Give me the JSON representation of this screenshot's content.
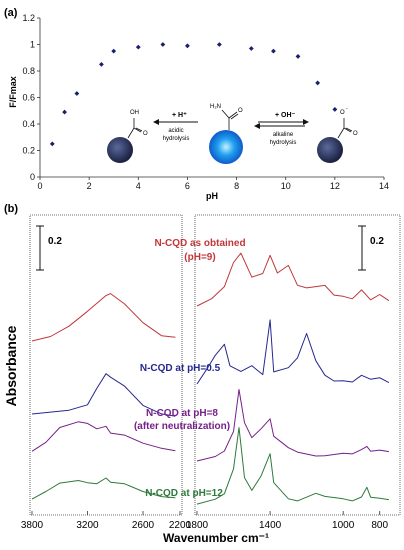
{
  "chart_data": [
    {
      "panel_label": "(a)",
      "type": "scatter",
      "xlabel": "pH",
      "ylabel": "F/Fmax",
      "xlim": [
        0,
        14
      ],
      "ylim": [
        0,
        1.2
      ],
      "xticks": [
        "0",
        "2",
        "4",
        "6",
        "8",
        "10",
        "12",
        "14"
      ],
      "yticks": [
        "0",
        "0.2",
        "0.4",
        "0.6",
        "0.8",
        "1",
        "1.2"
      ],
      "marker_color": "#1a1f6e",
      "points": [
        {
          "x": 0.5,
          "y": 0.25
        },
        {
          "x": 1.0,
          "y": 0.49
        },
        {
          "x": 1.5,
          "y": 0.63
        },
        {
          "x": 2.5,
          "y": 0.85
        },
        {
          "x": 3.0,
          "y": 0.95
        },
        {
          "x": 4.0,
          "y": 0.98
        },
        {
          "x": 5.0,
          "y": 1.0
        },
        {
          "x": 6.0,
          "y": 0.99
        },
        {
          "x": 7.3,
          "y": 1.0
        },
        {
          "x": 8.6,
          "y": 0.97
        },
        {
          "x": 9.5,
          "y": 0.95
        },
        {
          "x": 10.5,
          "y": 0.91
        },
        {
          "x": 11.3,
          "y": 0.71
        },
        {
          "x": 12.0,
          "y": 0.51
        }
      ],
      "annotations": {
        "acid": {
          "arrow_label": "+ H⁺",
          "process": "acidic",
          "process2": "hydrolysis"
        },
        "alkali": {
          "arrow_label": "+ OH⁻",
          "process": "alkaline",
          "process2": "hydrolysis"
        },
        "mid_molecule_label": "H₂N"
      },
      "ball_colors": {
        "left": "#2a3560",
        "center": "#1e8fe6",
        "right": "#2a3560"
      }
    },
    {
      "panel_label": "(b)",
      "type": "line",
      "xlabel": "Wavenumber cm⁻¹",
      "ylabel": "Absorbance",
      "xlim_left": [
        3800,
        2200
      ],
      "xlim_right": [
        1800,
        700
      ],
      "xticks_left": [
        "3800",
        "3200",
        "2600",
        "2200"
      ],
      "xticks_right": [
        "1800",
        "1400",
        "1000",
        "800"
      ],
      "scale_bar": "0.2",
      "series": [
        {
          "name": "N-CQD as obtained",
          "name2": "(pH=9)",
          "color": "#c0373a",
          "left": {
            "x": [
              3800,
              3600,
              3400,
              3200,
              3000,
              2950,
              2800,
              2600,
              2400,
              2250
            ],
            "y": [
              0.0,
              0.05,
              0.15,
              0.3,
              0.47,
              0.5,
              0.4,
              0.2,
              0.05,
              0.02
            ]
          },
          "right": {
            "x": [
              1800,
              1720,
              1650,
              1600,
              1560,
              1500,
              1440,
              1400,
              1360,
              1300,
              1250,
              1200,
              1100,
              1050,
              1000,
              950,
              900,
              850,
              800,
              750
            ],
            "y": [
              0.0,
              0.08,
              0.2,
              0.45,
              0.55,
              0.3,
              0.35,
              0.55,
              0.35,
              0.42,
              0.2,
              0.18,
              0.22,
              0.12,
              0.1,
              0.06,
              0.15,
              0.05,
              0.12,
              0.06
            ]
          }
        },
        {
          "name": "N-CQD at pH=0.5",
          "color": "#24288f",
          "left": {
            "x": [
              3800,
              3600,
              3400,
              3200,
              3100,
              3000,
              2950,
              2800,
              2600,
              2400,
              2250
            ],
            "y": [
              0.0,
              0.02,
              0.05,
              0.12,
              0.3,
              0.45,
              0.4,
              0.3,
              0.1,
              0.02,
              0.0
            ]
          },
          "right": {
            "x": [
              1800,
              1740,
              1700,
              1650,
              1620,
              1560,
              1500,
              1440,
              1400,
              1380,
              1300,
              1250,
              1200,
              1150,
              1100,
              1050,
              1000,
              950,
              900,
              850,
              800,
              750
            ],
            "y": [
              0.0,
              0.18,
              0.32,
              0.45,
              0.22,
              0.15,
              0.2,
              0.1,
              0.7,
              0.15,
              0.2,
              0.3,
              0.55,
              0.25,
              0.1,
              0.05,
              0.06,
              0.04,
              0.1,
              0.05,
              0.07,
              0.03
            ]
          }
        },
        {
          "name": "N-CQD at pH=8",
          "name2": "(after neutralization)",
          "color": "#76208a",
          "left": {
            "x": [
              3800,
              3650,
              3500,
              3300,
              3200,
              3100,
              3000,
              2950,
              2800,
              2600,
              2400,
              2250
            ],
            "y": [
              0.05,
              0.15,
              0.3,
              0.35,
              0.33,
              0.28,
              0.32,
              0.25,
              0.22,
              0.12,
              0.06,
              0.04
            ]
          },
          "right": {
            "x": [
              1800,
              1700,
              1650,
              1600,
              1570,
              1540,
              1500,
              1450,
              1400,
              1380,
              1300,
              1250,
              1150,
              1100,
              1000,
              950,
              900,
              870,
              850,
              800,
              750
            ],
            "y": [
              0.0,
              0.05,
              0.1,
              0.3,
              0.75,
              0.4,
              0.25,
              0.35,
              0.45,
              0.25,
              0.12,
              0.08,
              0.05,
              0.06,
              0.08,
              0.06,
              0.1,
              0.14,
              0.1,
              0.12,
              0.1
            ]
          }
        },
        {
          "name": "N-CQD at pH=12",
          "color": "#2e7a3a",
          "left": {
            "x": [
              3800,
              3650,
              3500,
              3300,
              3200,
              3100,
              3000,
              2950,
              2800,
              2600,
              2400,
              2250
            ],
            "y": [
              0.0,
              0.08,
              0.18,
              0.22,
              0.2,
              0.18,
              0.23,
              0.18,
              0.17,
              0.1,
              0.05,
              0.03
            ]
          },
          "right": {
            "x": [
              1800,
              1700,
              1650,
              1600,
              1570,
              1540,
              1500,
              1450,
              1400,
              1380,
              1300,
              1250,
              1150,
              1100,
              1000,
              950,
              900,
              870,
              850,
              800,
              750
            ],
            "y": [
              0.0,
              0.05,
              0.12,
              0.4,
              0.85,
              0.3,
              0.15,
              0.3,
              0.55,
              0.25,
              0.08,
              0.05,
              0.12,
              0.08,
              0.06,
              0.05,
              0.1,
              0.2,
              0.08,
              0.06,
              0.05
            ]
          }
        }
      ]
    }
  ]
}
